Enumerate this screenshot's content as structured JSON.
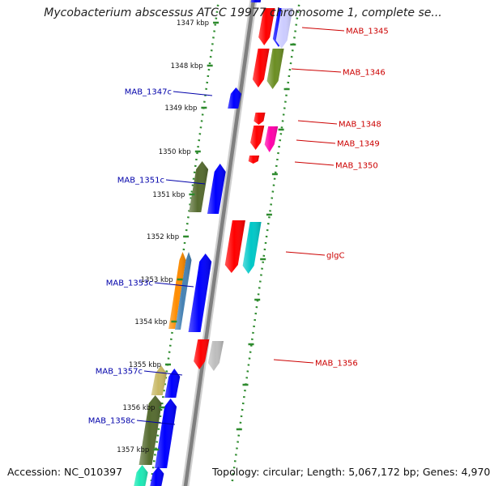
{
  "title": "Mycobacterium abscessus ATCC 19977 chromosome 1, complete se...",
  "footer": {
    "accession": "Accession: NC_010397",
    "summary": "Topology: circular; Length: 5,067,172 bp; Genes: 4,970"
  },
  "colors": {
    "backbone": "#808080",
    "dotted_ring": "#2e8b2e",
    "forward_label": "#cc0000",
    "reverse_label": "#0000aa"
  },
  "ticks": [
    {
      "label": "1347 kbp"
    },
    {
      "label": "1348 kbp"
    },
    {
      "label": "1349 kbp"
    },
    {
      "label": "1350 kbp"
    },
    {
      "label": "1351 kbp"
    },
    {
      "label": "1352 kbp"
    },
    {
      "label": "1353 kbp"
    },
    {
      "label": "1354 kbp"
    },
    {
      "label": "1355 kbp"
    },
    {
      "label": "1356 kbp"
    },
    {
      "label": "1357 kbp"
    }
  ],
  "genes": [
    {
      "label": "MAB_1345",
      "strand": "forward"
    },
    {
      "label": "MAB_1346",
      "strand": "forward"
    },
    {
      "label": "MAB_1347c",
      "strand": "reverse"
    },
    {
      "label": "MAB_1348",
      "strand": "forward"
    },
    {
      "label": "MAB_1349",
      "strand": "forward"
    },
    {
      "label": "MAB_1350",
      "strand": "forward"
    },
    {
      "label": "MAB_1351c",
      "strand": "reverse"
    },
    {
      "label": "glgC",
      "strand": "forward"
    },
    {
      "label": "MAB_1353c",
      "strand": "reverse"
    },
    {
      "label": "MAB_1356",
      "strand": "forward"
    },
    {
      "label": "MAB_1357c",
      "strand": "reverse"
    },
    {
      "label": "MAB_1358c",
      "strand": "reverse"
    }
  ]
}
